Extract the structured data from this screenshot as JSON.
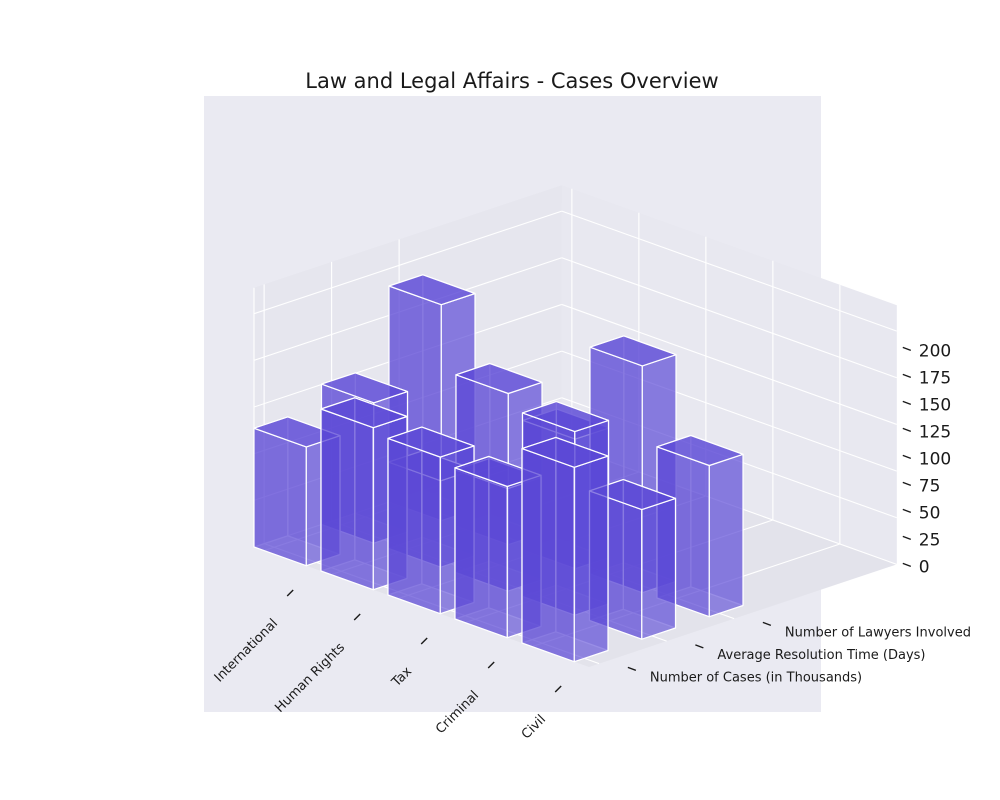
{
  "chart_data": {
    "type": "bar3d",
    "title": "Law and Legal Affairs - Cases Overview",
    "categories": [
      "International",
      "Human Rights",
      "Tax",
      "Criminal",
      "Civil"
    ],
    "metrics": [
      "Number of Cases (in Thousands)",
      "Average Resolution Time (Days)",
      "Number of Lawyers Involved"
    ],
    "series": [
      {
        "name": "Number of Cases (in Thousands)",
        "values": [
          110,
          150,
          145,
          140,
          180
        ]
      },
      {
        "name": "Average Resolution Time (Days)",
        "values": [
          130,
          80,
          95,
          170,
          120
        ]
      },
      {
        "name": "Number of Lawyers Involved",
        "values": [
          200,
          140,
          120,
          210,
          140
        ]
      }
    ],
    "zlim": [
      0,
      200
    ],
    "zticks": [
      0,
      25,
      50,
      75,
      100,
      125,
      150,
      175,
      200
    ],
    "grid": true,
    "bar_color": "#5b48d6",
    "bar_edge_color": "#ffffff",
    "pane_color": "#eaeaf2"
  }
}
